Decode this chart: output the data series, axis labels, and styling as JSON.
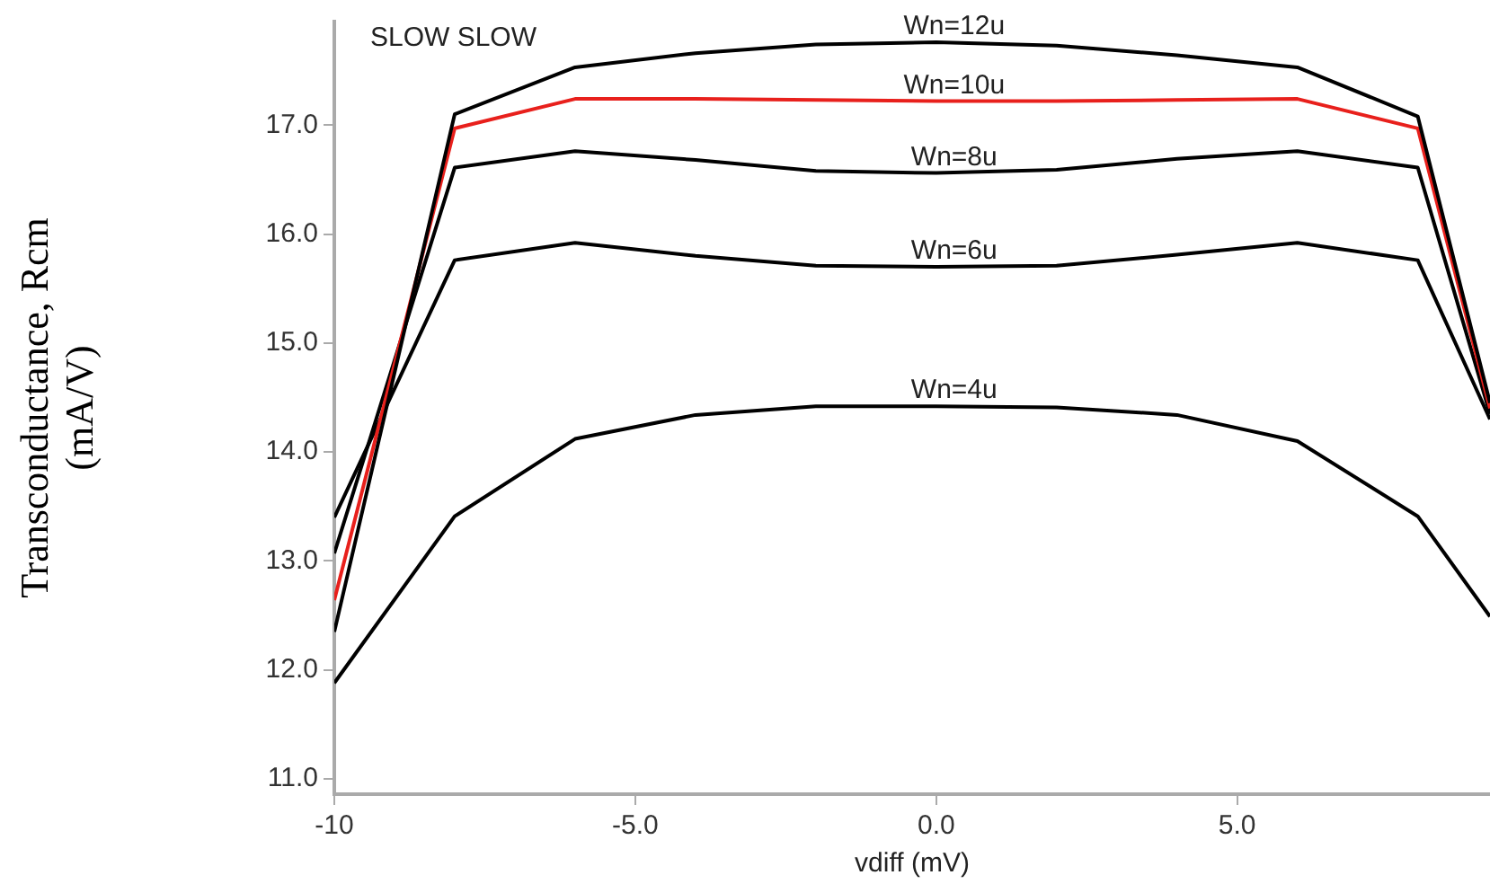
{
  "chart_data": {
    "type": "line",
    "xlabel": "vdiff (mV)",
    "ylabel": "Transconductance, Rcm\n(mA/V)",
    "annotations": [
      "SLOW SLOW"
    ],
    "x": [
      -10,
      -8,
      -6,
      -4,
      -2,
      0,
      2,
      4,
      6,
      8,
      9.2
    ],
    "series": [
      {
        "name": "Wn=12u",
        "color": "#000000",
        "values": [
          12.35,
          17.1,
          17.53,
          17.66,
          17.74,
          17.76,
          17.73,
          17.64,
          17.53,
          17.08,
          14.45
        ]
      },
      {
        "name": "Wn=10u",
        "color": "#e8201c",
        "values": [
          12.64,
          16.97,
          17.24,
          17.24,
          17.23,
          17.22,
          17.22,
          17.23,
          17.24,
          16.97,
          14.4
        ]
      },
      {
        "name": "Wn=8u",
        "color": "#000000",
        "values": [
          13.07,
          16.61,
          16.76,
          16.68,
          16.58,
          16.56,
          16.59,
          16.69,
          16.76,
          16.61,
          14.35
        ]
      },
      {
        "name": "Wn=6u",
        "color": "#000000",
        "values": [
          13.4,
          15.76,
          15.92,
          15.8,
          15.71,
          15.7,
          15.71,
          15.81,
          15.92,
          15.76,
          14.3
        ]
      },
      {
        "name": "Wn=4u",
        "color": "#000000",
        "values": [
          11.88,
          13.41,
          14.12,
          14.34,
          14.42,
          14.42,
          14.41,
          14.34,
          14.1,
          13.41,
          12.49
        ]
      }
    ],
    "xlim": [
      -10,
      9.2
    ],
    "xticks": [
      -10,
      {
        "value": -5,
        "label": "-5.0"
      },
      {
        "value": 0,
        "label": "0.0"
      },
      {
        "value": 5,
        "label": "5.0"
      }
    ],
    "ylim": [
      10.86,
      17.95
    ],
    "yticks": [
      {
        "value": 11,
        "label": "11.0"
      },
      {
        "value": 12,
        "label": "12.0"
      },
      {
        "value": 13,
        "label": "13.0"
      },
      {
        "value": 14,
        "label": "14.0"
      },
      {
        "value": 15,
        "label": "15.0"
      },
      {
        "value": 16,
        "label": "16.0"
      },
      {
        "value": 17,
        "label": "17.0"
      }
    ],
    "grid": false,
    "legend": false,
    "marker": "none",
    "line_style": "solid"
  }
}
